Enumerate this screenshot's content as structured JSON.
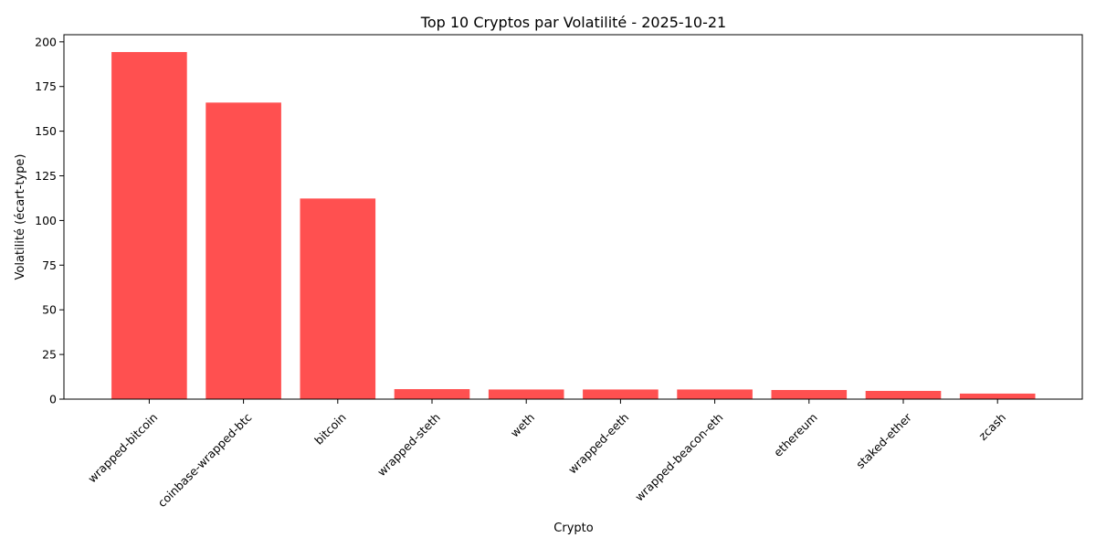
{
  "chart_data": {
    "type": "bar",
    "title": "Top 10 Cryptos par Volatilité - 2025-10-21",
    "xlabel": "Crypto",
    "ylabel": "Volatilité (écart-type)",
    "categories": [
      "wrapped-bitcoin",
      "coinbase-wrapped-btc",
      "bitcoin",
      "wrapped-steth",
      "weth",
      "wrapped-eeth",
      "wrapped-beacon-eth",
      "ethereum",
      "staked-ether",
      "zcash"
    ],
    "values": [
      194.3,
      166.0,
      112.3,
      5.6,
      5.4,
      5.4,
      5.4,
      5.1,
      4.6,
      3.1
    ],
    "ylim": [
      0,
      204
    ],
    "yticks": [
      0,
      25,
      50,
      75,
      100,
      125,
      150,
      175,
      200
    ],
    "grid": false,
    "legend": "none",
    "bar_color": "#ff5050"
  }
}
